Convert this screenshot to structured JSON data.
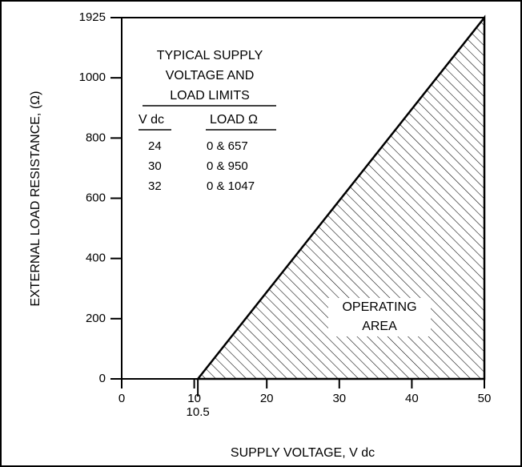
{
  "chart_data": {
    "type": "area",
    "xlabel": "SUPPLY VOLTAGE, V dc",
    "ylabel": "EXTERNAL LOAD RESISTANCE, (Ω)",
    "x": [
      10.5,
      50
    ],
    "series": [
      {
        "values": [
          0,
          1925
        ],
        "color": "#000000"
      }
    ],
    "xlim": [
      0,
      50
    ],
    "xticks": [
      0,
      10,
      10.5,
      20,
      30,
      40,
      50
    ],
    "ylim": [
      0,
      1925
    ],
    "yticks": [
      0,
      200,
      400,
      600,
      800,
      1000,
      1925
    ],
    "annotation": [
      "OPERATING",
      "AREA"
    ],
    "table": {
      "title": [
        "TYPICAL SUPPLY",
        "VOLTAGE AND",
        "LOAD LIMITS"
      ],
      "header": [
        "V dc",
        "LOAD Ω"
      ],
      "rows": [
        [
          "24",
          "0 & 657"
        ],
        [
          "30",
          "0 & 950"
        ],
        [
          "32",
          "0 & 1047"
        ]
      ]
    }
  }
}
